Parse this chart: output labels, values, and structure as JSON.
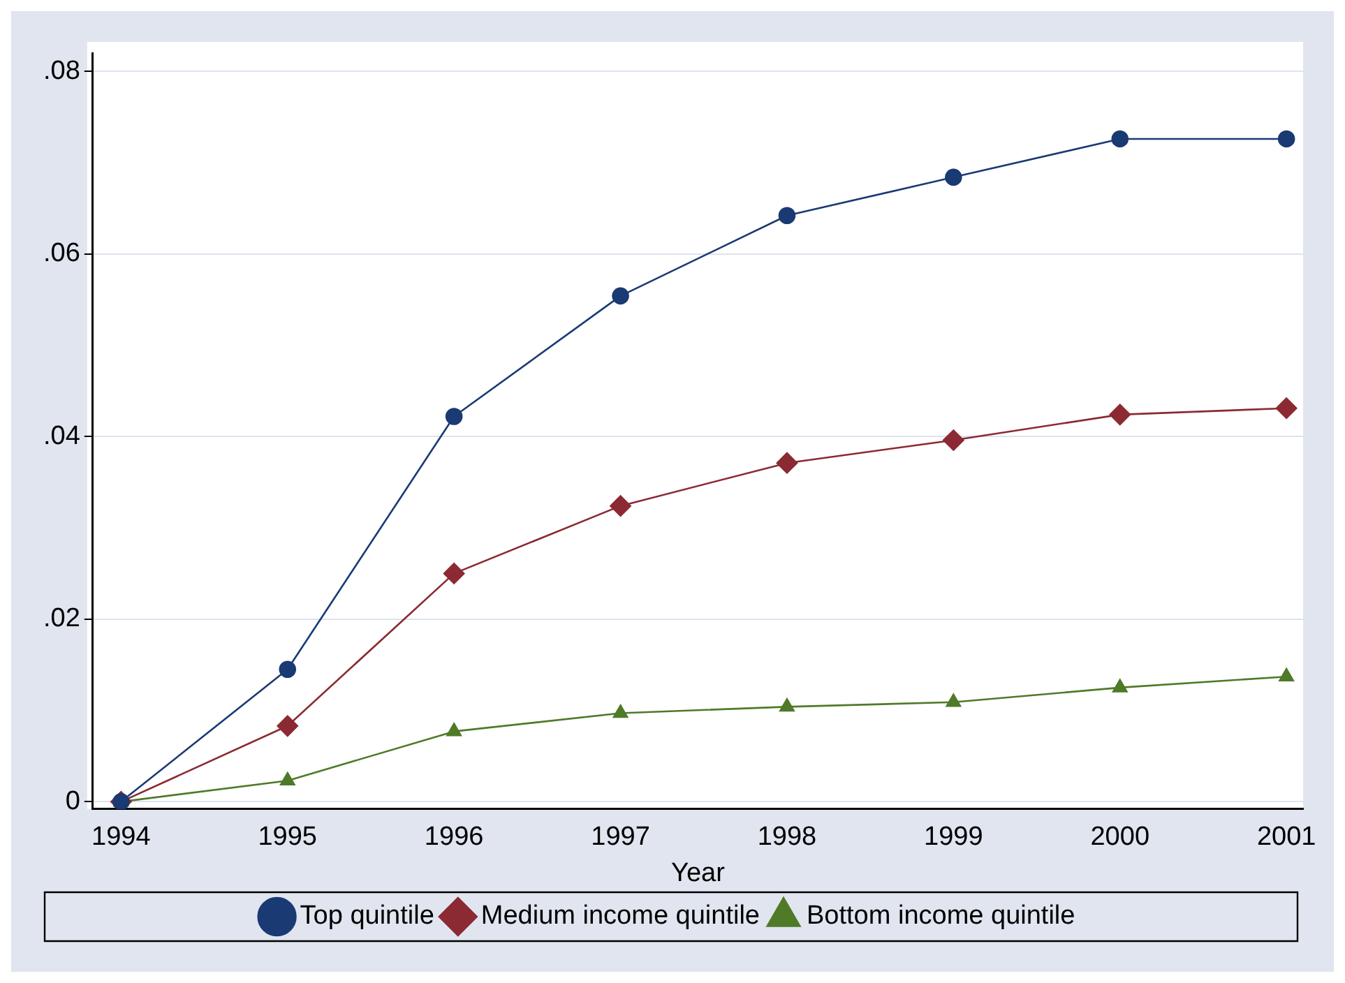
{
  "chart_data": {
    "type": "line",
    "xlabel": "Year",
    "x": [
      1994,
      1995,
      1996,
      1997,
      1998,
      1999,
      2000,
      2001
    ],
    "series": [
      {
        "name": "Top quintile",
        "color": "#1a3a74",
        "marker": "circle",
        "values": [
          0,
          0.0145,
          0.0422,
          0.0554,
          0.0642,
          0.0684,
          0.0726,
          0.0726
        ]
      },
      {
        "name": "Medium income quintile",
        "color": "#8b2a32",
        "marker": "diamond",
        "values": [
          0,
          0.0083,
          0.025,
          0.0324,
          0.0371,
          0.0396,
          0.0424,
          0.0431
        ]
      },
      {
        "name": "Bottom income quintile",
        "color": "#4f7a28",
        "marker": "triangle",
        "values": [
          0,
          0.0023,
          0.0077,
          0.0097,
          0.0104,
          0.0109,
          0.0125,
          0.0137
        ]
      }
    ],
    "xlim": [
      1993.83,
      2001.1
    ],
    "xticks": [
      1994,
      1995,
      1996,
      1997,
      1998,
      1999,
      2000,
      2001
    ],
    "ylim": [
      -0.0008,
      0.082
    ],
    "yticks": [
      {
        "value": 0,
        "label": "0"
      },
      {
        "value": 0.02,
        "label": ".02"
      },
      {
        "value": 0.04,
        "label": ".04"
      },
      {
        "value": 0.06,
        "label": ".06"
      },
      {
        "value": 0.08,
        "label": ".08"
      }
    ],
    "grid": "y",
    "legend": "bottom",
    "line_style": "solid"
  }
}
